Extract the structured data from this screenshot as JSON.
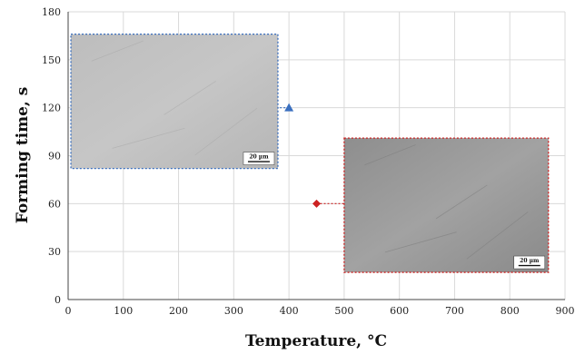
{
  "chart_data": {
    "type": "scatter",
    "title": "",
    "xlabel": "Temperature, °C",
    "ylabel": "Forming time, s",
    "xlim": [
      0,
      900
    ],
    "ylim": [
      0,
      180
    ],
    "xticks": [
      0,
      100,
      200,
      300,
      400,
      500,
      600,
      700,
      800,
      900
    ],
    "yticks": [
      0,
      30,
      60,
      90,
      120,
      150,
      180
    ],
    "xtick_labels": [
      "0",
      "100",
      "200",
      "300",
      "400",
      "500",
      "600",
      "700",
      "800",
      "900"
    ],
    "ytick_labels": [
      "0",
      "30",
      "60",
      "90",
      "120",
      "150",
      "180"
    ],
    "grid": true,
    "series": [
      {
        "marker": "triangle",
        "color": "#3a6fbf",
        "points": [
          {
            "x": 400,
            "y": 120
          }
        ]
      },
      {
        "marker": "diamond",
        "color": "#cc2222",
        "points": [
          {
            "x": 450,
            "y": 60
          }
        ]
      }
    ],
    "insets": [
      {
        "kind": "micrograph",
        "border_color": "#3a6fbf",
        "scale_bar_label": "20 µm",
        "linked_point": {
          "x": 400,
          "y": 120
        },
        "extent": {
          "x0": 5,
          "x1": 380,
          "y0": 82,
          "y1": 166
        }
      },
      {
        "kind": "micrograph",
        "border_color": "#cc2222",
        "scale_bar_label": "20 µm",
        "linked_point": {
          "x": 450,
          "y": 60
        },
        "extent": {
          "x0": 500,
          "x1": 870,
          "y0": 17,
          "y1": 101
        }
      }
    ]
  }
}
